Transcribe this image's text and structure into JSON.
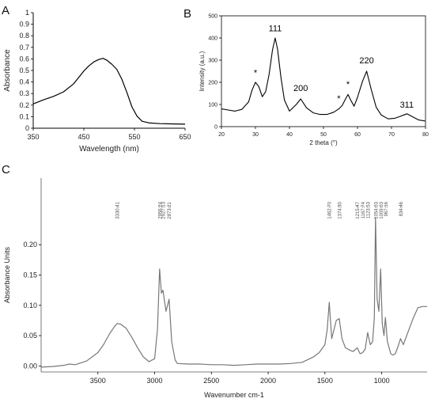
{
  "chart_data": [
    {
      "panel_label": "A",
      "type": "line",
      "xlabel": "Wavelength (nm)",
      "ylabel": "Absorbance",
      "xlim": [
        350,
        650
      ],
      "ylim": [
        0,
        1
      ],
      "xticks": [
        "350",
        "450",
        "550",
        "650"
      ],
      "yticks": [
        "0",
        "0.1",
        "0.2",
        "0.3",
        "0.4",
        "0.5",
        "0.6",
        "0.7",
        "0.8",
        "0.9",
        "1"
      ],
      "x": [
        350,
        370,
        390,
        410,
        430,
        450,
        460,
        470,
        480,
        488,
        495,
        505,
        515,
        525,
        535,
        545,
        555,
        565,
        580,
        600,
        620,
        650
      ],
      "values": [
        0.21,
        0.245,
        0.275,
        0.315,
        0.385,
        0.495,
        0.54,
        0.575,
        0.595,
        0.605,
        0.59,
        0.555,
        0.51,
        0.425,
        0.31,
        0.185,
        0.105,
        0.06,
        0.045,
        0.04,
        0.038,
        0.035
      ],
      "color": "#000000"
    },
    {
      "panel_label": "B",
      "type": "line",
      "xlabel": "2 theta (°)",
      "ylabel": "Intensity (a.u.)",
      "xlim": [
        20,
        80
      ],
      "ylim": [
        0,
        500
      ],
      "xticks": [
        "20",
        "30",
        "40",
        "50",
        "60",
        "70",
        "80"
      ],
      "yticks": [
        "0",
        "100",
        "200",
        "300",
        "400",
        "500"
      ],
      "x": [
        20,
        22,
        24,
        26,
        28,
        29,
        30,
        31,
        32,
        33,
        34,
        35,
        35.8,
        36.5,
        37.5,
        38.5,
        40,
        42,
        43.3,
        45,
        47,
        49,
        51,
        53,
        54.5,
        55.5,
        56.5,
        57.2,
        58,
        59,
        60,
        61.5,
        62.7,
        64,
        65.5,
        67,
        69,
        71,
        72.5,
        74.5,
        76.5,
        78,
        80
      ],
      "values": [
        80,
        75,
        70,
        78,
        112,
        165,
        200,
        180,
        135,
        158,
        235,
        345,
        400,
        350,
        220,
        120,
        70,
        100,
        125,
        85,
        62,
        55,
        55,
        65,
        80,
        95,
        125,
        145,
        120,
        92,
        132,
        205,
        250,
        170,
        88,
        52,
        35,
        38,
        46,
        58,
        42,
        30,
        25
      ],
      "annotations": [
        {
          "text": "111",
          "x": 35.8,
          "y": 430
        },
        {
          "text": "200",
          "x": 43.3,
          "y": 160
        },
        {
          "text": "220",
          "x": 62.7,
          "y": 285
        },
        {
          "text": "311",
          "x": 74.5,
          "y": 85
        },
        {
          "text": "*",
          "x": 30,
          "y": 230
        },
        {
          "text": "*",
          "x": 54.5,
          "y": 115
        },
        {
          "text": "*",
          "x": 57.2,
          "y": 178
        }
      ],
      "color": "#000000"
    },
    {
      "panel_label": "C",
      "type": "line",
      "xlabel": "Wavenumber cm-1",
      "ylabel": "Absorbance Units",
      "xlim": [
        4000,
        600
      ],
      "ylim": [
        -0.01,
        0.31
      ],
      "xticks": [
        "3500",
        "3000",
        "2500",
        "2000",
        "1500",
        "1000"
      ],
      "yticks": [
        "0.00",
        "0.05",
        "0.10",
        "0.15",
        "0.20"
      ],
      "peak_labels": [
        "3330.41",
        "2956.24",
        "2927.13",
        "2873.21",
        "1462.70",
        "1374.30",
        "1215.47",
        "1167.74",
        "1123.53",
        "1054.03",
        "1009.03",
        "967.16",
        "834.46"
      ],
      "x": [
        4000,
        3900,
        3800,
        3750,
        3700,
        3600,
        3500,
        3450,
        3400,
        3350,
        3330,
        3300,
        3250,
        3200,
        3150,
        3100,
        3050,
        3000,
        2975,
        2956,
        2940,
        2927,
        2900,
        2873,
        2850,
        2820,
        2800,
        2700,
        2600,
        2500,
        2400,
        2300,
        2200,
        2100,
        2000,
        1900,
        1800,
        1700,
        1600,
        1550,
        1500,
        1480,
        1462,
        1440,
        1420,
        1400,
        1374,
        1350,
        1320,
        1300,
        1270,
        1250,
        1215,
        1190,
        1167,
        1145,
        1123,
        1100,
        1080,
        1065,
        1054,
        1040,
        1025,
        1009,
        995,
        980,
        967,
        950,
        920,
        900,
        880,
        860,
        834,
        810,
        780,
        750,
        720,
        680,
        640,
        600
      ],
      "values": [
        -0.002,
        -0.001,
        0.001,
        0.003,
        0.002,
        0.008,
        0.022,
        0.035,
        0.052,
        0.066,
        0.07,
        0.069,
        0.062,
        0.047,
        0.03,
        0.015,
        0.007,
        0.012,
        0.06,
        0.16,
        0.12,
        0.125,
        0.09,
        0.11,
        0.04,
        0.01,
        0.004,
        0.003,
        0.003,
        0.002,
        0.002,
        0.001,
        0.002,
        0.003,
        0.003,
        0.003,
        0.004,
        0.006,
        0.015,
        0.022,
        0.035,
        0.06,
        0.105,
        0.045,
        0.06,
        0.075,
        0.078,
        0.045,
        0.03,
        0.028,
        0.025,
        0.024,
        0.03,
        0.02,
        0.022,
        0.028,
        0.055,
        0.035,
        0.04,
        0.08,
        0.245,
        0.11,
        0.09,
        0.16,
        0.07,
        0.05,
        0.08,
        0.04,
        0.02,
        0.018,
        0.02,
        0.03,
        0.045,
        0.035,
        0.05,
        0.065,
        0.08,
        0.096,
        0.098,
        0.098
      ],
      "color": "#777777"
    }
  ]
}
